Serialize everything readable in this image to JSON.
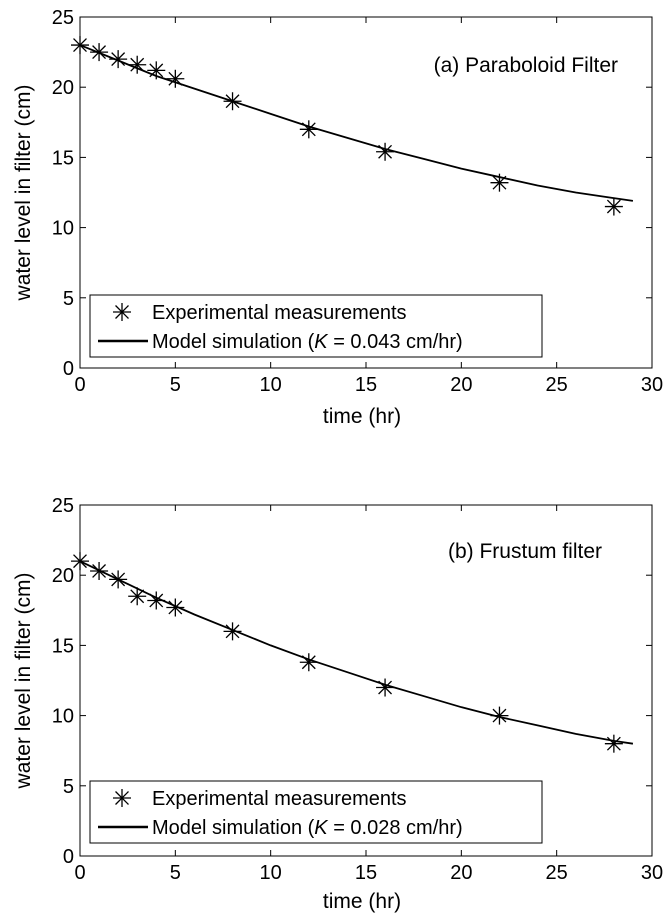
{
  "colors": {
    "axis": "#000000",
    "line": "#000000",
    "marker": "#000000",
    "background": "#ffffff"
  },
  "chart_data": [
    {
      "type": "line",
      "title": "",
      "annotation": "(a) Paraboloid Filter",
      "xlabel": "time (hr)",
      "ylabel": "water level in filter (cm)",
      "xlim": [
        0,
        30
      ],
      "ylim": [
        0,
        25
      ],
      "xticks": [
        "0",
        "5",
        "10",
        "15",
        "20",
        "25",
        "30"
      ],
      "yticks": [
        "0",
        "5",
        "10",
        "15",
        "20",
        "25"
      ],
      "grid": false,
      "legend_position": "bottom-left",
      "legend_entries": [
        {
          "marker": "asterisk",
          "label": "Experimental measurements"
        },
        {
          "marker": "line",
          "label_prefix": "Model simulation (",
          "label_italic": "K",
          "label_suffix": " = 0.043 cm/hr)"
        }
      ],
      "series": [
        {
          "name": "Experimental measurements",
          "kind": "scatter",
          "marker": "asterisk",
          "x": [
            0,
            1,
            2,
            3,
            4,
            5,
            8,
            12,
            16,
            22,
            28
          ],
          "y": [
            23.0,
            22.5,
            22.0,
            21.6,
            21.2,
            20.6,
            19.0,
            17.0,
            15.4,
            13.2,
            11.5
          ]
        },
        {
          "name": "Model simulation",
          "kind": "line",
          "x": [
            0,
            2,
            4,
            6,
            8,
            10,
            12,
            14,
            16,
            18,
            20,
            22,
            24,
            26,
            28,
            29
          ],
          "y": [
            23.0,
            21.9,
            20.8,
            19.9,
            19.0,
            18.1,
            17.2,
            16.4,
            15.6,
            14.9,
            14.2,
            13.6,
            13.0,
            12.5,
            12.1,
            11.9
          ]
        }
      ]
    },
    {
      "type": "line",
      "title": "",
      "annotation": "(b) Frustum filter",
      "xlabel": "time (hr)",
      "ylabel": "water level in filter (cm)",
      "xlim": [
        0,
        30
      ],
      "ylim": [
        0,
        25
      ],
      "xticks": [
        "0",
        "5",
        "10",
        "15",
        "20",
        "25",
        "30"
      ],
      "yticks": [
        "0",
        "5",
        "10",
        "15",
        "20",
        "25"
      ],
      "grid": false,
      "legend_position": "bottom-left",
      "legend_entries": [
        {
          "marker": "asterisk",
          "label": "Experimental measurements"
        },
        {
          "marker": "line",
          "label_prefix": "Model simulation (",
          "label_italic": "K",
          "label_suffix": " = 0.028 cm/hr)"
        }
      ],
      "series": [
        {
          "name": "Experimental measurements",
          "kind": "scatter",
          "marker": "asterisk",
          "x": [
            0,
            1,
            2,
            3,
            4,
            5,
            8,
            12,
            16,
            22,
            28
          ],
          "y": [
            21.0,
            20.3,
            19.7,
            18.5,
            18.2,
            17.7,
            16.0,
            13.8,
            12.0,
            10.0,
            8.0
          ]
        },
        {
          "name": "Model simulation",
          "kind": "line",
          "x": [
            0,
            2,
            4,
            6,
            8,
            10,
            12,
            14,
            16,
            18,
            20,
            22,
            24,
            26,
            28,
            29
          ],
          "y": [
            21.0,
            19.7,
            18.4,
            17.2,
            16.1,
            15.0,
            14.0,
            13.1,
            12.2,
            11.4,
            10.6,
            9.9,
            9.3,
            8.7,
            8.2,
            8.0
          ]
        }
      ]
    }
  ]
}
